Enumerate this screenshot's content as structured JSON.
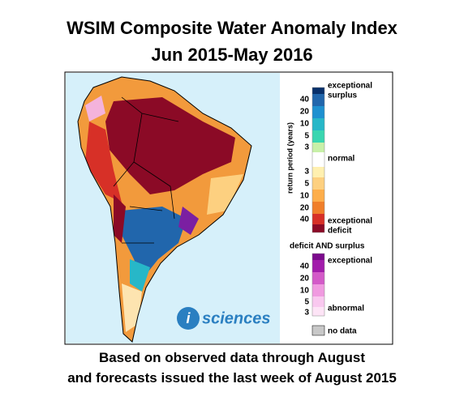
{
  "title": [
    "WSIM Composite Water Anomaly Index",
    "Jun 2015-May 2016"
  ],
  "caption": [
    "Based on observed data through August",
    "and forecasts issued the last week of August 2015"
  ],
  "logo": {
    "mark": "i",
    "text": "sciences"
  },
  "legend": {
    "axis_label": "return period (years)",
    "surplus_label": [
      "exceptional",
      "surplus"
    ],
    "surplus_ticks": [
      "40",
      "20",
      "10",
      "5",
      "3"
    ],
    "normal": "normal",
    "deficit_ticks": [
      "3",
      "5",
      "10",
      "20",
      "40"
    ],
    "deficit_label": [
      "exceptional",
      "deficit"
    ],
    "combined": {
      "title": "deficit AND surplus",
      "ticks": [
        "40",
        "20",
        "10",
        "5",
        "3"
      ],
      "top": "exceptional",
      "bottom": "abnormal"
    },
    "no_data": "no data"
  }
}
